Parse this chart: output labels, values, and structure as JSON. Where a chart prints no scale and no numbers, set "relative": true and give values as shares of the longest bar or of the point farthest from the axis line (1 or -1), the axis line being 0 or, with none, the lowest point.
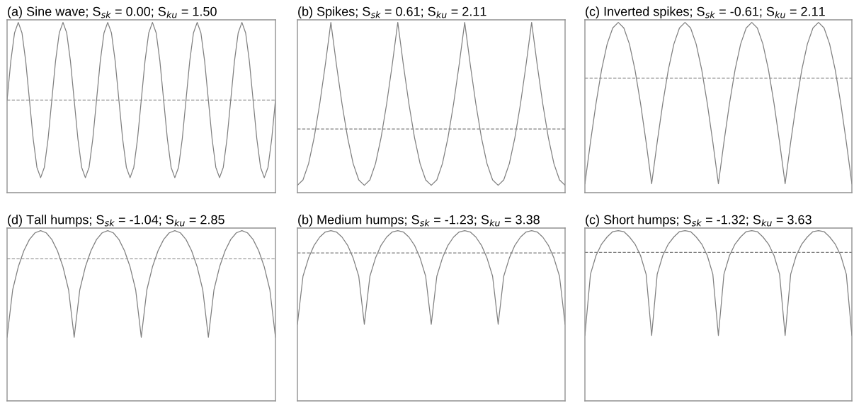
{
  "chart_data": [
    {
      "type": "line",
      "relative": true,
      "title": "(a) Sine wave; S$_{sk}$ = 0.00; S$_{ku}$ = 1.50",
      "categories": [
        null,
        null,
        null,
        null,
        null,
        null,
        null,
        null,
        null,
        null,
        null,
        null,
        null,
        null,
        null,
        null,
        null,
        null,
        null,
        null,
        null,
        null,
        null,
        null,
        null,
        null,
        null,
        null,
        null,
        null,
        null,
        null,
        null,
        null,
        null,
        null,
        null,
        null,
        null,
        null,
        null,
        null,
        null,
        null,
        null,
        null,
        null,
        null,
        null,
        null,
        null,
        null,
        null,
        null,
        null,
        null,
        null,
        null,
        null,
        null,
        null,
        null,
        null,
        null,
        null,
        null,
        null,
        null,
        null,
        null,
        null,
        null,
        null
      ],
      "series": [
        {
          "color": "#808080",
          "values": [
            0.544,
            0.772,
            0.938,
            1.0,
            0.938,
            0.772,
            0.544,
            0.316,
            0.149,
            0.088,
            0.149,
            0.316,
            0.544,
            0.772,
            0.938,
            1.0,
            0.938,
            0.772,
            0.544,
            0.316,
            0.149,
            0.088,
            0.149,
            0.316,
            0.544,
            0.772,
            0.938,
            1.0,
            0.938,
            0.772,
            0.544,
            0.316,
            0.149,
            0.088,
            0.149,
            0.316,
            0.544,
            0.772,
            0.938,
            1.0,
            0.938,
            0.772,
            0.544,
            0.316,
            0.149,
            0.088,
            0.149,
            0.316,
            0.544,
            0.772,
            0.938,
            1.0,
            0.938,
            0.772,
            0.544,
            0.316,
            0.149,
            0.088,
            0.149,
            0.316,
            0.544,
            0.772,
            0.938,
            1.0,
            0.938,
            0.772,
            0.544,
            0.316,
            0.149,
            0.088,
            0.149,
            0.316,
            0.544
          ]
        }
      ],
      "ref_lines": [
        {
          "axis": "y",
          "value": 0.544,
          "label": null,
          "color": "#808080",
          "line_style": "dashed"
        }
      ]
    },
    {
      "type": "line",
      "relative": true,
      "title": "(b) Spikes; S$_{sk}$ = 0.61; S$_{ku}$ = 2.11",
      "categories": [
        null,
        null,
        null,
        null,
        null,
        null,
        null,
        null,
        null,
        null,
        null,
        null,
        null,
        null,
        null,
        null,
        null,
        null,
        null,
        null,
        null,
        null,
        null,
        null,
        null,
        null,
        null,
        null,
        null,
        null,
        null,
        null,
        null,
        null,
        null,
        null,
        null,
        null,
        null,
        null,
        null,
        null,
        null,
        null,
        null,
        null,
        null,
        null,
        null
      ],
      "series": [
        {
          "color": "#808080",
          "values": [
            0.043,
            0.075,
            0.17,
            0.323,
            0.521,
            0.751,
            1.0,
            0.751,
            0.521,
            0.323,
            0.17,
            0.075,
            0.043,
            0.075,
            0.17,
            0.323,
            0.521,
            0.751,
            1.0,
            0.751,
            0.521,
            0.323,
            0.17,
            0.075,
            0.043,
            0.075,
            0.17,
            0.323,
            0.521,
            0.751,
            1.0,
            0.751,
            0.521,
            0.323,
            0.17,
            0.075,
            0.043,
            0.075,
            0.17,
            0.323,
            0.521,
            0.751,
            1.0,
            0.751,
            0.521,
            0.323,
            0.17,
            0.075,
            0.043
          ]
        }
      ],
      "ref_lines": [
        {
          "axis": "y",
          "value": 0.374,
          "label": null,
          "color": "#808080",
          "line_style": "dashed"
        }
      ]
    },
    {
      "type": "line",
      "relative": true,
      "title": "(c) Inverted spikes; S$_{sk}$ = -0.61; S$_{ku}$ = 2.11",
      "categories": [
        null,
        null,
        null,
        null,
        null,
        null,
        null,
        null,
        null,
        null,
        null,
        null,
        null,
        null,
        null,
        null,
        null,
        null,
        null,
        null,
        null,
        null,
        null,
        null,
        null,
        null,
        null,
        null,
        null,
        null,
        null,
        null,
        null,
        null,
        null,
        null,
        null,
        null,
        null,
        null,
        null,
        null,
        null,
        null,
        null,
        null,
        null,
        null,
        null
      ],
      "series": [
        {
          "color": "#808080",
          "values": [
            0.052,
            0.297,
            0.525,
            0.722,
            0.873,
            0.967,
            1.0,
            0.967,
            0.873,
            0.722,
            0.525,
            0.297,
            0.052,
            0.297,
            0.525,
            0.722,
            0.873,
            0.967,
            1.0,
            0.967,
            0.873,
            0.722,
            0.525,
            0.297,
            0.052,
            0.297,
            0.525,
            0.722,
            0.873,
            0.967,
            1.0,
            0.967,
            0.873,
            0.722,
            0.525,
            0.297,
            0.052,
            0.297,
            0.525,
            0.722,
            0.873,
            0.967,
            1.0,
            0.967,
            0.873,
            0.722,
            0.525,
            0.297,
            0.052
          ]
        }
      ],
      "ref_lines": [
        {
          "axis": "y",
          "value": 0.673,
          "label": null,
          "color": "#808080",
          "line_style": "dashed"
        }
      ]
    },
    {
      "type": "line",
      "relative": true,
      "title": "(d) Tall humps; S$_{sk}$ = -1.04; S$_{ku}$ = 2.85",
      "categories": [
        null,
        null,
        null,
        null,
        null,
        null,
        null,
        null,
        null,
        null,
        null,
        null,
        null,
        null,
        null,
        null,
        null,
        null,
        null,
        null,
        null,
        null,
        null,
        null,
        null,
        null,
        null,
        null,
        null,
        null,
        null,
        null,
        null,
        null,
        null,
        null,
        null,
        null,
        null,
        null,
        null,
        null,
        null,
        null,
        null,
        null,
        null,
        null,
        null
      ],
      "series": [
        {
          "color": "#808080",
          "values": [
            0.374,
            0.652,
            0.787,
            0.882,
            0.948,
            0.987,
            1.0,
            0.987,
            0.948,
            0.882,
            0.787,
            0.652,
            0.374,
            0.652,
            0.787,
            0.882,
            0.948,
            0.987,
            1.0,
            0.987,
            0.948,
            0.882,
            0.787,
            0.652,
            0.374,
            0.652,
            0.787,
            0.882,
            0.948,
            0.987,
            1.0,
            0.987,
            0.948,
            0.882,
            0.787,
            0.652,
            0.374,
            0.652,
            0.787,
            0.882,
            0.948,
            0.987,
            1.0,
            0.987,
            0.948,
            0.882,
            0.787,
            0.652,
            0.374
          ]
        }
      ],
      "ref_lines": [
        {
          "axis": "y",
          "value": 0.834,
          "label": null,
          "color": "#808080",
          "line_style": "dashed"
        }
      ]
    },
    {
      "type": "line",
      "relative": true,
      "title": "(b) Medium humps; S$_{sk}$ = -1.23; S$_{ku}$ = 3.38",
      "categories": [
        null,
        null,
        null,
        null,
        null,
        null,
        null,
        null,
        null,
        null,
        null,
        null,
        null,
        null,
        null,
        null,
        null,
        null,
        null,
        null,
        null,
        null,
        null,
        null,
        null,
        null,
        null,
        null,
        null,
        null,
        null,
        null,
        null,
        null,
        null,
        null,
        null,
        null,
        null,
        null,
        null,
        null,
        null,
        null,
        null,
        null,
        null,
        null,
        null
      ],
      "series": [
        {
          "color": "#808080",
          "values": [
            0.45,
            0.732,
            0.839,
            0.914,
            0.962,
            0.992,
            1.0,
            0.992,
            0.962,
            0.914,
            0.839,
            0.732,
            0.45,
            0.732,
            0.839,
            0.914,
            0.962,
            0.992,
            1.0,
            0.992,
            0.962,
            0.914,
            0.839,
            0.732,
            0.45,
            0.732,
            0.839,
            0.914,
            0.962,
            0.992,
            1.0,
            0.992,
            0.962,
            0.914,
            0.839,
            0.732,
            0.45,
            0.732,
            0.839,
            0.914,
            0.962,
            0.992,
            1.0,
            0.992,
            0.962,
            0.914,
            0.839,
            0.732,
            0.45
          ]
        }
      ],
      "ref_lines": [
        {
          "axis": "y",
          "value": 0.869,
          "label": null,
          "color": "#808080",
          "line_style": "dashed"
        }
      ]
    },
    {
      "type": "line",
      "relative": true,
      "title": "(c) Short humps; S$_{sk}$ = -1.32; S$_{ku}$ = 3.63",
      "categories": [
        null,
        null,
        null,
        null,
        null,
        null,
        null,
        null,
        null,
        null,
        null,
        null,
        null,
        null,
        null,
        null,
        null,
        null,
        null,
        null,
        null,
        null,
        null,
        null,
        null,
        null,
        null,
        null,
        null,
        null,
        null,
        null,
        null,
        null,
        null,
        null,
        null,
        null,
        null,
        null,
        null,
        null,
        null,
        null,
        null,
        null,
        null,
        null,
        null
      ],
      "series": [
        {
          "color": "#808080",
          "values": [
            0.384,
            0.744,
            0.854,
            0.921,
            0.963,
            0.994,
            1.0,
            0.994,
            0.963,
            0.921,
            0.854,
            0.744,
            0.384,
            0.744,
            0.854,
            0.921,
            0.963,
            0.994,
            1.0,
            0.994,
            0.963,
            0.921,
            0.854,
            0.744,
            0.384,
            0.744,
            0.854,
            0.921,
            0.963,
            0.994,
            1.0,
            0.994,
            0.963,
            0.921,
            0.854,
            0.744,
            0.384,
            0.744,
            0.854,
            0.921,
            0.963,
            0.994,
            1.0,
            0.994,
            0.963,
            0.921,
            0.854,
            0.744,
            0.384
          ]
        }
      ],
      "ref_lines": [
        {
          "axis": "y",
          "value": 0.872,
          "label": null,
          "color": "#808080",
          "line_style": "dashed"
        }
      ]
    }
  ]
}
